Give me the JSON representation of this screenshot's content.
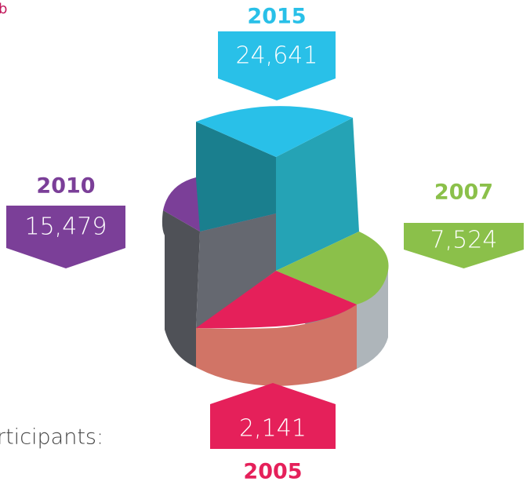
{
  "chart_data": {
    "type": "pie",
    "categories": [
      "2015",
      "2007",
      "2005",
      "2010"
    ],
    "values": [
      24641,
      7524,
      2141,
      15479
    ],
    "value_labels": [
      "24,641",
      "7,524",
      "2,141",
      "15,479"
    ],
    "colors": [
      "#29c0e8",
      "#8bc04a",
      "#e5205a",
      "#7b3f98"
    ]
  },
  "fragments": {
    "top_left": "b",
    "bottom_left": "rticipants:"
  }
}
